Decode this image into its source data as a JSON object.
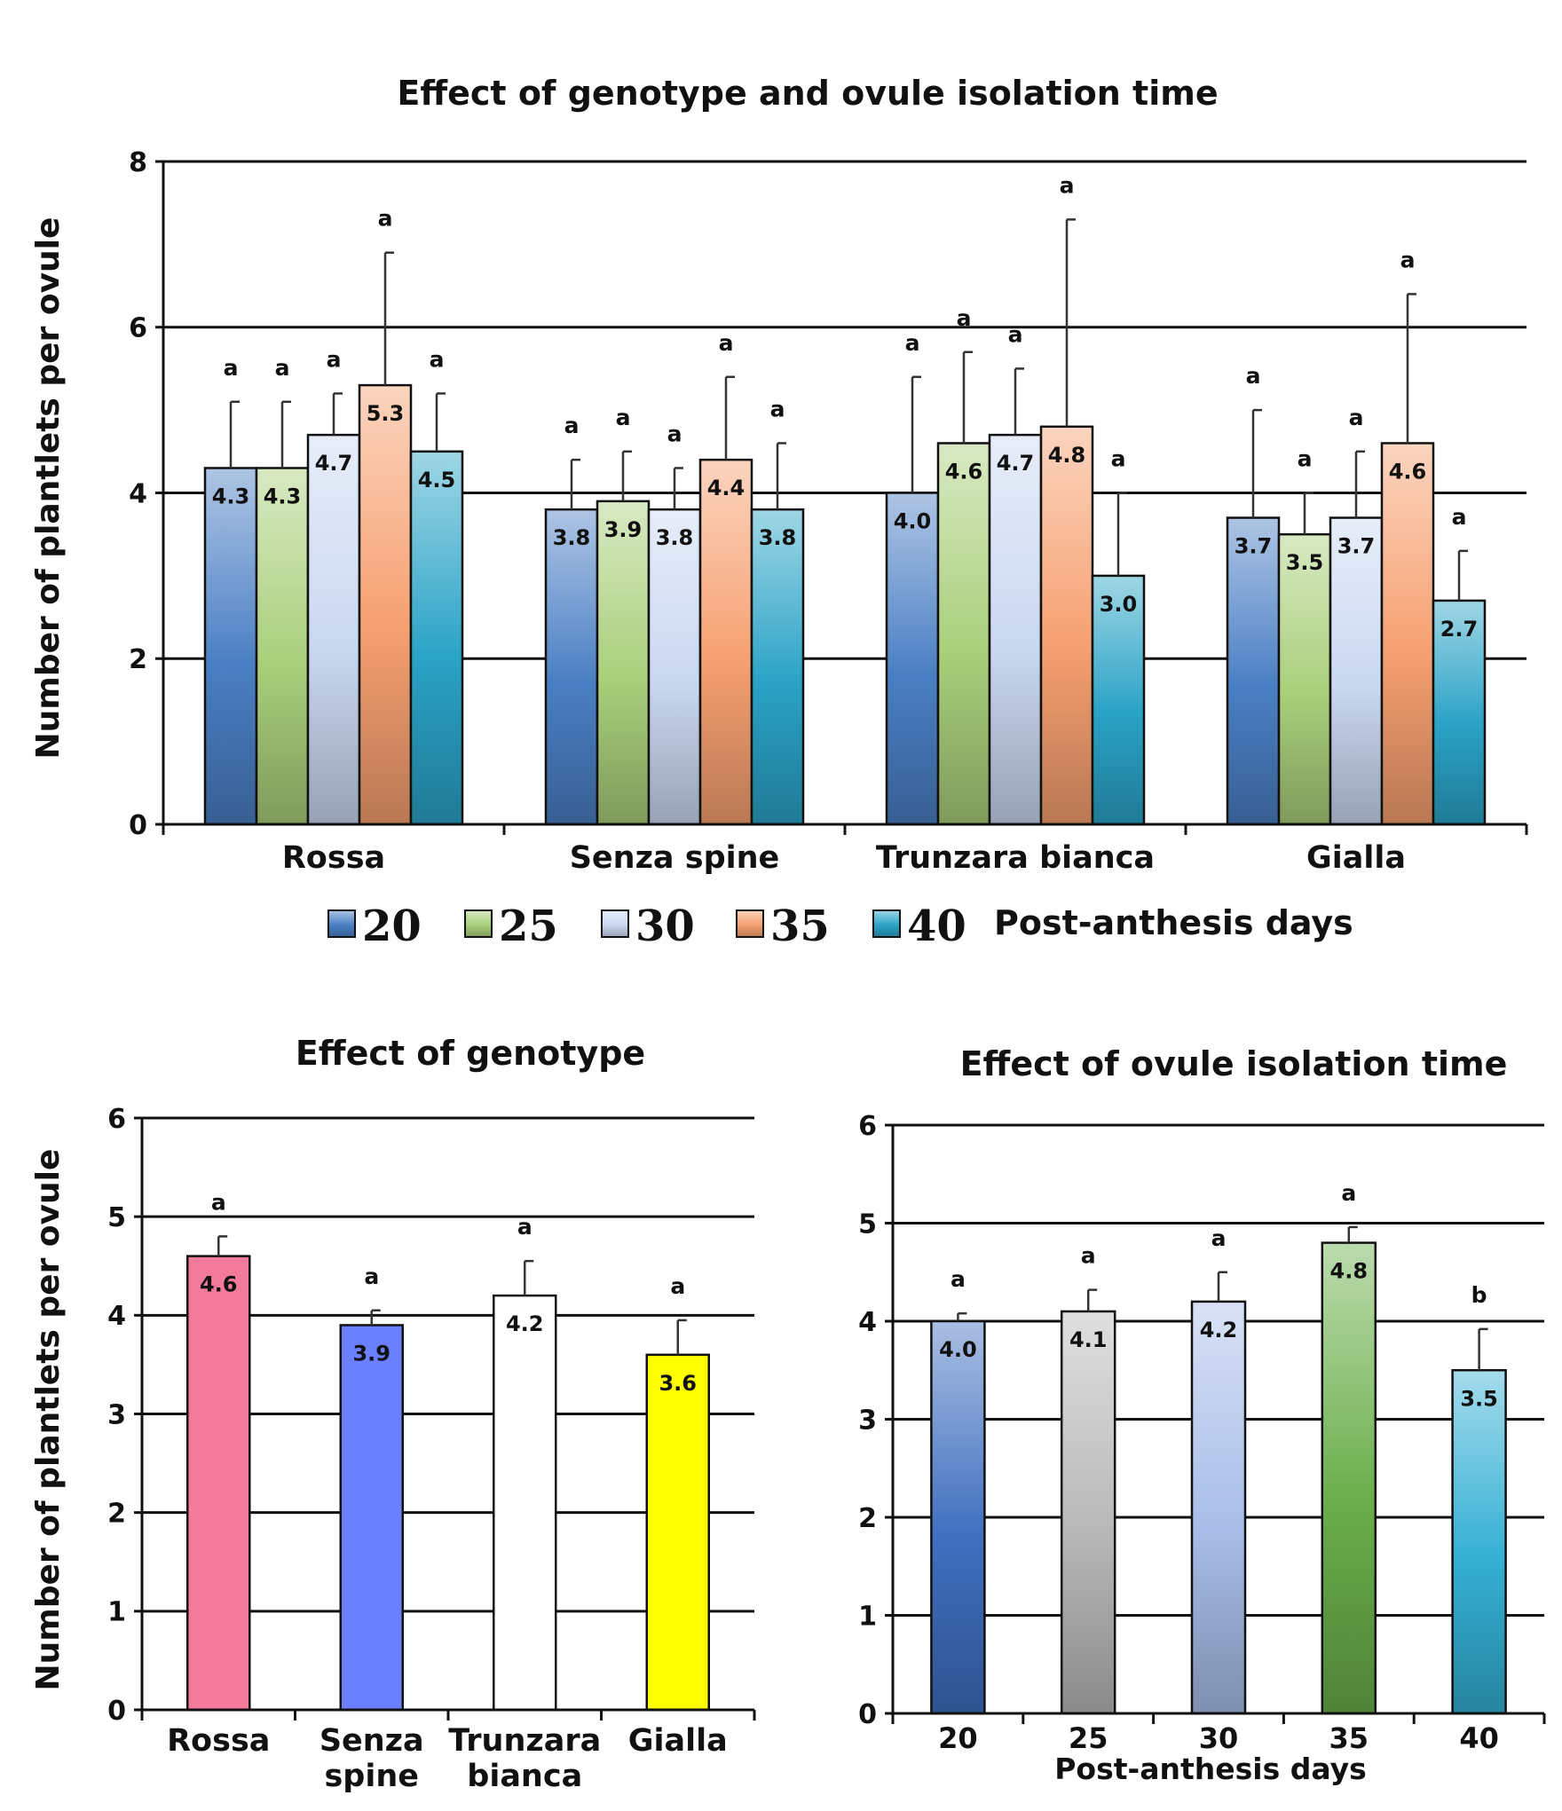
{
  "colors": {
    "d20": "#4a7fc4",
    "d25": "#a9cf7a",
    "d30": "#c9d8f0",
    "d35": "#f6a070",
    "d40": "#2aa3c6",
    "rossa": "#f47a9c",
    "senza": "#6a80ff",
    "trunzara": "#ffffff",
    "gialla": "#ffff00",
    "p20": "#3f6fbf",
    "p25": "#b8b8b8",
    "p30": "#a8bde8",
    "p35": "#6aae4a",
    "p40": "#34b0d4"
  },
  "chart_data": [
    {
      "type": "bar",
      "title": "Effect of genotype and ovule isolation time",
      "ylabel": "Number of plantlets per ovule",
      "xlabel": "",
      "ylim": [
        0,
        8
      ],
      "yticks": [
        "0",
        "2",
        "4",
        "6",
        "8"
      ],
      "categories": [
        "Rossa",
        "Senza spine",
        "Trunzara bianca",
        "Gialla"
      ],
      "legend_title": "Post-anthesis days",
      "series": [
        {
          "name": "20",
          "color_key": "d20",
          "values": [
            4.3,
            3.8,
            4.0,
            3.7
          ],
          "labels": [
            "4.3",
            "3.8",
            "4.0",
            "3.7"
          ],
          "err_top": [
            5.1,
            4.4,
            5.4,
            5.0
          ],
          "sig": [
            "a",
            "a",
            "a",
            "a"
          ]
        },
        {
          "name": "25",
          "color_key": "d25",
          "values": [
            4.3,
            3.9,
            4.6,
            3.5
          ],
          "labels": [
            "4.3",
            "3.9",
            "4.6",
            "3.5"
          ],
          "err_top": [
            5.1,
            4.5,
            5.7,
            4.0
          ],
          "sig": [
            "a",
            "a",
            "a",
            "a"
          ]
        },
        {
          "name": "30",
          "color_key": "d30",
          "values": [
            4.7,
            3.8,
            4.7,
            3.7
          ],
          "labels": [
            "4.7",
            "3.8",
            "4.7",
            "3.7"
          ],
          "err_top": [
            5.2,
            4.3,
            5.5,
            4.5
          ],
          "sig": [
            "a",
            "a",
            "a",
            "a"
          ]
        },
        {
          "name": "35",
          "color_key": "d35",
          "values": [
            5.3,
            4.4,
            4.8,
            4.6
          ],
          "labels": [
            "5.3",
            "4.4",
            "4.8",
            "4.6"
          ],
          "err_top": [
            6.9,
            5.4,
            7.3,
            6.4
          ],
          "sig": [
            "a",
            "a",
            "a",
            "a"
          ]
        },
        {
          "name": "40",
          "color_key": "d40",
          "values": [
            4.5,
            3.8,
            3.0,
            2.7
          ],
          "labels": [
            "4.5",
            "3.8",
            "3.0",
            "2.7"
          ],
          "err_top": [
            5.2,
            4.6,
            4.0,
            3.3
          ],
          "sig": [
            "a",
            "a",
            "a",
            "a"
          ]
        }
      ]
    },
    {
      "type": "bar",
      "title": "Effect of genotype",
      "ylabel": "Number of plantlets per ovule",
      "xlabel": "",
      "ylim": [
        0,
        6
      ],
      "yticks": [
        "0",
        "1",
        "2",
        "3",
        "4",
        "5",
        "6"
      ],
      "categories": [
        [
          "Rossa"
        ],
        [
          "Senza",
          "spine"
        ],
        [
          "Trunzara",
          "bianca"
        ],
        [
          "Gialla"
        ]
      ],
      "values": [
        4.6,
        3.9,
        4.2,
        3.6
      ],
      "labels": [
        "4.6",
        "3.9",
        "4.2",
        "3.6"
      ],
      "err_top": [
        4.8,
        4.05,
        4.55,
        3.95
      ],
      "sig": [
        "a",
        "a",
        "a",
        "a"
      ],
      "color_keys": [
        "rossa",
        "senza",
        "trunzara",
        "gialla"
      ]
    },
    {
      "type": "bar",
      "title": "Effect of ovule isolation time",
      "ylabel": "",
      "xlabel": "Post-anthesis days",
      "ylim": [
        0,
        6
      ],
      "yticks": [
        "0",
        "1",
        "2",
        "3",
        "4",
        "5",
        "6"
      ],
      "categories": [
        [
          "20"
        ],
        [
          "25"
        ],
        [
          "30"
        ],
        [
          "35"
        ],
        [
          "40"
        ]
      ],
      "values": [
        4.0,
        4.1,
        4.2,
        4.8,
        3.5
      ],
      "labels": [
        "4.0",
        "4.1",
        "4.2",
        "4.8",
        "3.5"
      ],
      "err_top": [
        4.08,
        4.32,
        4.5,
        4.96,
        3.92
      ],
      "sig": [
        "a",
        "a",
        "a",
        "a",
        "b"
      ],
      "color_keys": [
        "p20",
        "p25",
        "p30",
        "p35",
        "p40"
      ]
    }
  ]
}
